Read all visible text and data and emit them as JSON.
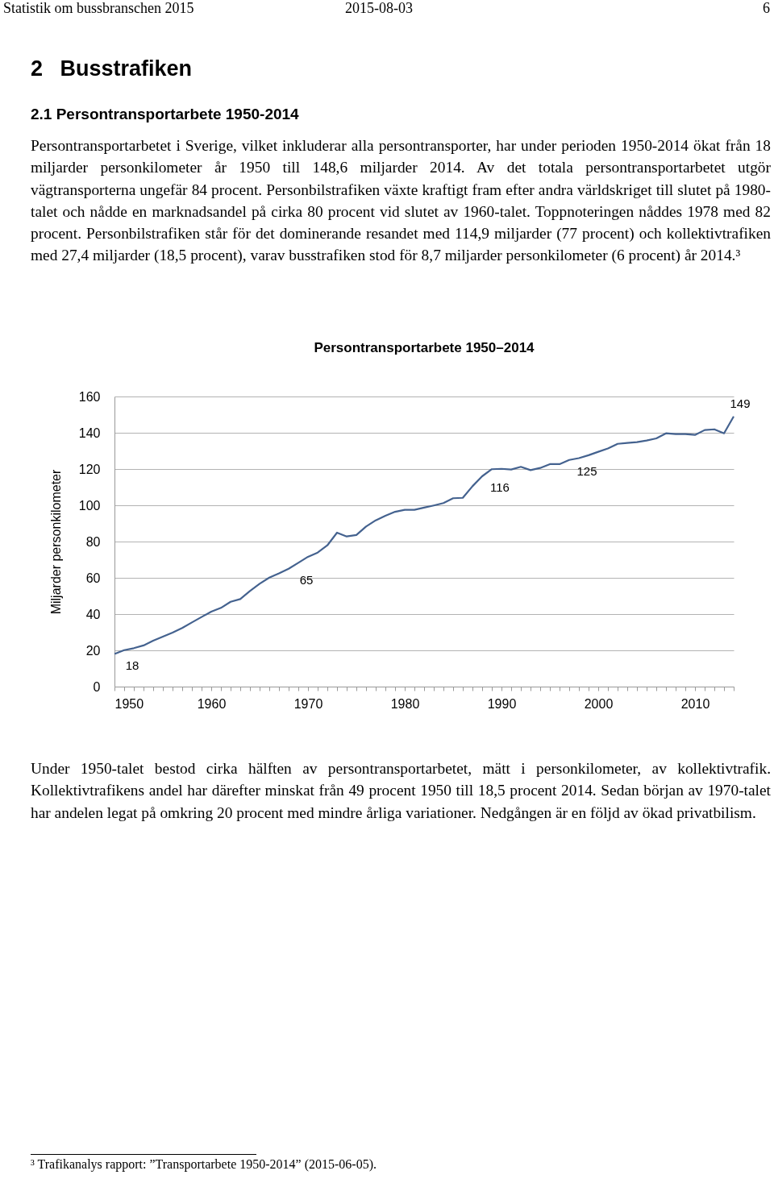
{
  "chart_data": {
    "type": "line",
    "title": "Persontransportarbete 1950–2014",
    "ylabel": "Miljarder personkilometer",
    "x": [
      1950,
      1951,
      1952,
      1953,
      1954,
      1955,
      1956,
      1957,
      1958,
      1959,
      1960,
      1961,
      1962,
      1963,
      1964,
      1965,
      1966,
      1967,
      1968,
      1969,
      1970,
      1971,
      1972,
      1973,
      1974,
      1975,
      1976,
      1977,
      1978,
      1979,
      1980,
      1981,
      1982,
      1983,
      1984,
      1985,
      1986,
      1987,
      1988,
      1989,
      1990,
      1991,
      1992,
      1993,
      1994,
      1995,
      1996,
      1997,
      1998,
      1999,
      2000,
      2001,
      2002,
      2003,
      2004,
      2005,
      2006,
      2007,
      2008,
      2009,
      2010,
      2011,
      2012,
      2013,
      2014
    ],
    "series": [
      {
        "color": "#44628f",
        "values": [
          18,
          20.1,
          21.2,
          22.7,
          25.3,
          27.6,
          29.8,
          32.3,
          35.4,
          38.4,
          41.3,
          43.4,
          46.8,
          48.3,
          52.7,
          56.7,
          60.1,
          62.4,
          65,
          68.3,
          71.6,
          73.9,
          77.9,
          84.9,
          82.8,
          83.6,
          88.3,
          91.7,
          94.2,
          96.4,
          97.5,
          97.5,
          98.7,
          99.9,
          101.2,
          103.9,
          104.1,
          110.5,
          116,
          119.9,
          120.1,
          119.7,
          121.2,
          119.4,
          120.6,
          122.7,
          122.7,
          125,
          126,
          127.6,
          129.5,
          131.3,
          133.9,
          134.4,
          134.8,
          135.7,
          136.9,
          139.7,
          139.3,
          139.3,
          138.8,
          141.5,
          141.9,
          139.7,
          149
        ],
        "value_labels": [
          "18",
          null,
          null,
          null,
          null,
          null,
          null,
          null,
          null,
          null,
          null,
          null,
          null,
          null,
          null,
          null,
          null,
          null,
          "65",
          null,
          null,
          null,
          null,
          null,
          null,
          null,
          null,
          null,
          null,
          null,
          null,
          null,
          null,
          null,
          null,
          null,
          null,
          null,
          "116",
          null,
          null,
          null,
          null,
          null,
          null,
          null,
          null,
          "125",
          null,
          null,
          null,
          null,
          null,
          null,
          null,
          null,
          null,
          null,
          null,
          null,
          null,
          null,
          null,
          null,
          "149"
        ]
      }
    ],
    "xlim": [
      1950,
      2014
    ],
    "xticks": [
      1950,
      {
        "value": 1951,
        "label": null
      },
      {
        "value": 1952,
        "label": null
      },
      {
        "value": 1953,
        "label": null
      },
      {
        "value": 1954,
        "label": null
      },
      {
        "value": 1955,
        "label": null
      },
      {
        "value": 1956,
        "label": null
      },
      {
        "value": 1957,
        "label": null
      },
      {
        "value": 1958,
        "label": null
      },
      {
        "value": 1959,
        "label": null
      },
      1960,
      {
        "value": 1961,
        "label": null
      },
      {
        "value": 1962,
        "label": null
      },
      {
        "value": 1963,
        "label": null
      },
      {
        "value": 1964,
        "label": null
      },
      {
        "value": 1965,
        "label": null
      },
      {
        "value": 1966,
        "label": null
      },
      {
        "value": 1967,
        "label": null
      },
      {
        "value": 1968,
        "label": null
      },
      {
        "value": 1969,
        "label": null
      },
      1970,
      {
        "value": 1971,
        "label": null
      },
      {
        "value": 1972,
        "label": null
      },
      {
        "value": 1973,
        "label": null
      },
      {
        "value": 1974,
        "label": null
      },
      {
        "value": 1975,
        "label": null
      },
      {
        "value": 1976,
        "label": null
      },
      {
        "value": 1977,
        "label": null
      },
      {
        "value": 1978,
        "label": null
      },
      {
        "value": 1979,
        "label": null
      },
      1980,
      {
        "value": 1981,
        "label": null
      },
      {
        "value": 1982,
        "label": null
      },
      {
        "value": 1983,
        "label": null
      },
      {
        "value": 1984,
        "label": null
      },
      {
        "value": 1985,
        "label": null
      },
      {
        "value": 1986,
        "label": null
      },
      {
        "value": 1987,
        "label": null
      },
      {
        "value": 1988,
        "label": null
      },
      {
        "value": 1989,
        "label": null
      },
      1990,
      {
        "value": 1991,
        "label": null
      },
      {
        "value": 1992,
        "label": null
      },
      {
        "value": 1993,
        "label": null
      },
      {
        "value": 1994,
        "label": null
      },
      {
        "value": 1995,
        "label": null
      },
      {
        "value": 1996,
        "label": null
      },
      {
        "value": 1997,
        "label": null
      },
      {
        "value": 1998,
        "label": null
      },
      {
        "value": 1999,
        "label": null
      },
      2000,
      {
        "value": 2001,
        "label": null
      },
      {
        "value": 2002,
        "label": null
      },
      {
        "value": 2003,
        "label": null
      },
      {
        "value": 2004,
        "label": null
      },
      {
        "value": 2005,
        "label": null
      },
      {
        "value": 2006,
        "label": null
      },
      {
        "value": 2007,
        "label": null
      },
      {
        "value": 2008,
        "label": null
      },
      {
        "value": 2009,
        "label": null
      },
      2010,
      {
        "value": 2011,
        "label": null
      },
      {
        "value": 2012,
        "label": null
      },
      {
        "value": 2013,
        "label": null
      },
      {
        "value": 2014,
        "label": null
      }
    ],
    "ylim": [
      0,
      160
    ],
    "yticks": [
      0,
      20,
      40,
      60,
      80,
      100,
      120,
      140,
      160
    ],
    "grid": "y",
    "marker": "none",
    "line_style": "solid",
    "annotations": [
      "Statistik om bussbranschen 2015",
      "2015-08-03",
      "6",
      "2 Busstrafiken",
      "2.1 Persontransportarbete 1950-2014",
      "Persontransportarbetet i Sverige, vilket inkluderar alla persontransporter, har under perioden 1950-2014 ökat från 18 miljarder personkilometer år 1950 till 148,6 miljarder 2014. Av det totala persontransportarbetet utgör vägtransporterna ungefär 84 procent. Personbilstrafiken växte kraftigt fram efter andra världskriget till slutet på 1980-talet och nådde en marknadsandel på cirka 80 procent vid slutet av 1960-talet. Toppnoteringen nåddes 1978 med 82 procent. Personbilstrafiken står för det dominerande resandet med 114,9 miljarder (77 procent) och kollektivtrafiken med 27,4 miljarder (18,5 procent), varav busstrafiken stod för 8,7 miljarder personkilometer (6 procent) år 2014.³",
      "Under 1950-talet bestod cirka hälften av persontransportarbetet, mätt i personkilometer, av kollektivtrafik. Kollektivtrafikens andel har därefter minskat från 49 procent 1950 till 18,5 procent 2014. Sedan början av 1970-talet har andelen legat på omkring 20 procent med mindre årliga variationer. Nedgången är en följd av ökad privatbilism.",
      "³ Trafikanalys rapport: ”Transportarbete 1950-2014” (2015-06-05)."
    ]
  }
}
